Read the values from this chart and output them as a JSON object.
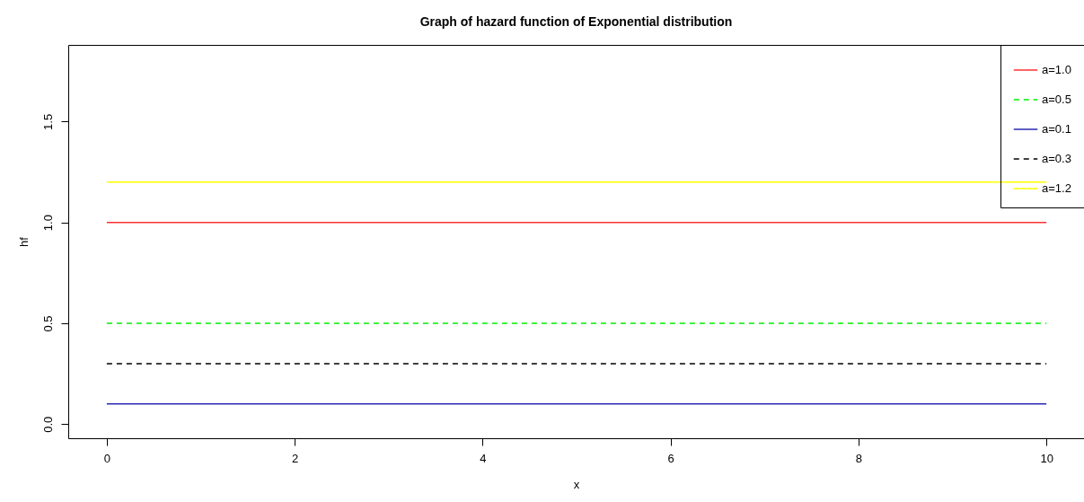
{
  "chart_data": {
    "type": "line",
    "title": "Graph of hazard function of Exponential distribution",
    "xlabel": "x",
    "ylabel": "hf",
    "x": [
      0,
      10
    ],
    "series": [
      {
        "name": "a=1.0",
        "color": "#ff3030",
        "values": [
          1.0,
          1.0
        ],
        "line_style": "solid"
      },
      {
        "name": "a=0.5",
        "color": "#00ee00",
        "values": [
          0.5,
          0.5
        ],
        "line_style": "dashed"
      },
      {
        "name": "a=0.1",
        "color": "#2a2ab0",
        "values": [
          0.1,
          0.1
        ],
        "line_style": "solid"
      },
      {
        "name": "a=0.3",
        "color": "#000000",
        "values": [
          0.3,
          0.3
        ],
        "line_style": "dashed"
      },
      {
        "name": "a=1.2",
        "color": "#ffff00",
        "values": [
          1.2,
          1.2
        ],
        "line_style": "solid"
      }
    ],
    "xlim": [
      -0.41,
      10.4
    ],
    "ylim": [
      -0.07,
      1.88
    ],
    "xticks": [
      0,
      2,
      4,
      6,
      8,
      10
    ],
    "yticks": [
      {
        "value": 0,
        "label": "0.0"
      },
      0.5,
      {
        "value": 1,
        "label": "1.0"
      },
      1.5
    ],
    "grid": false,
    "legend": "top right",
    "marker": "none"
  }
}
